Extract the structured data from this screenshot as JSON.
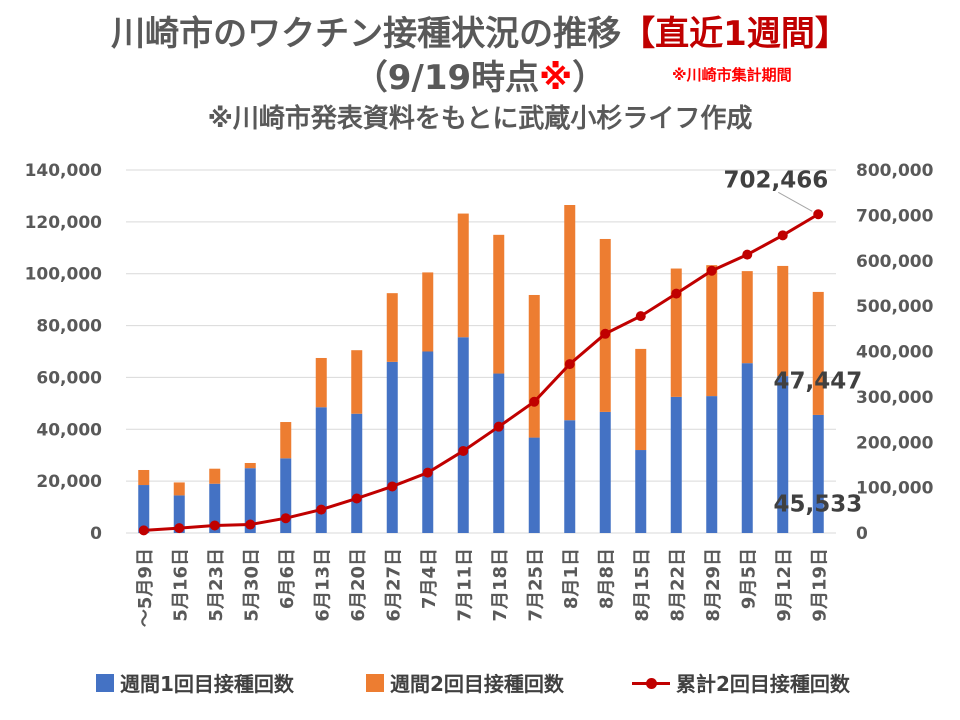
{
  "title": {
    "line1_main": "川崎市のワクチン接種状況の推移",
    "line1_highlight": "【直近1週間】",
    "line2_main": "（9/19時点",
    "line2_mark": "※",
    "line2_end": "）",
    "note": "※川崎市集計期間",
    "line3": "※川崎市発表資料をもとに武蔵小杉ライフ作成"
  },
  "colors": {
    "first_dose": "#4472c4",
    "second_dose": "#ed7d31",
    "cumulative": "#c00000"
  },
  "chart_data": {
    "type": "bar",
    "categories": [
      "～5月9日",
      "5月16日",
      "5月23日",
      "5月30日",
      "6月6日",
      "6月13日",
      "6月20日",
      "6月27日",
      "7月4日",
      "7月11日",
      "7月18日",
      "7月25日",
      "8月1日",
      "8月8日",
      "8月15日",
      "8月22日",
      "8月29日",
      "9月5日",
      "9月12日",
      "9月19日"
    ],
    "series": [
      {
        "name": "週間1回目接種回数",
        "type": "bar",
        "axis": "left",
        "values": [
          18500,
          14500,
          19000,
          25000,
          28800,
          48500,
          46000,
          66000,
          70000,
          75500,
          61500,
          36800,
          43500,
          46700,
          32000,
          52500,
          52800,
          65500,
          60500,
          45533
        ]
      },
      {
        "name": "週間2回目接種回数",
        "type": "bar",
        "axis": "left",
        "values": [
          5800,
          5000,
          5800,
          2000,
          14000,
          19000,
          24500,
          26500,
          30500,
          47700,
          53500,
          55000,
          83000,
          66700,
          39000,
          49500,
          50500,
          35500,
          42500,
          47447
        ]
      },
      {
        "name": "累計2回目接種回数",
        "type": "line",
        "axis": "right",
        "values": [
          5800,
          10800,
          16600,
          18600,
          32600,
          51600,
          76100,
          102600,
          133100,
          180800,
          234300,
          289300,
          372300,
          439000,
          478000,
          527500,
          578000,
          613500,
          656000,
          702466
        ]
      }
    ],
    "y_left": {
      "min": 0,
      "max": 140000,
      "ticks": [
        "0",
        "20,000",
        "40,000",
        "60,000",
        "80,000",
        "100,000",
        "120,000",
        "140,000"
      ]
    },
    "y_right": {
      "min": 0,
      "max": 800000,
      "ticks": [
        "0",
        "100,000",
        "200,000",
        "300,000",
        "400,000",
        "500,000",
        "600,000",
        "700,000",
        "800,000"
      ]
    },
    "data_labels": {
      "first_dose_last": "45,533",
      "second_dose_last": "47,447",
      "cumulative_last": "702,466"
    },
    "legend_position": "bottom",
    "grid": true
  }
}
